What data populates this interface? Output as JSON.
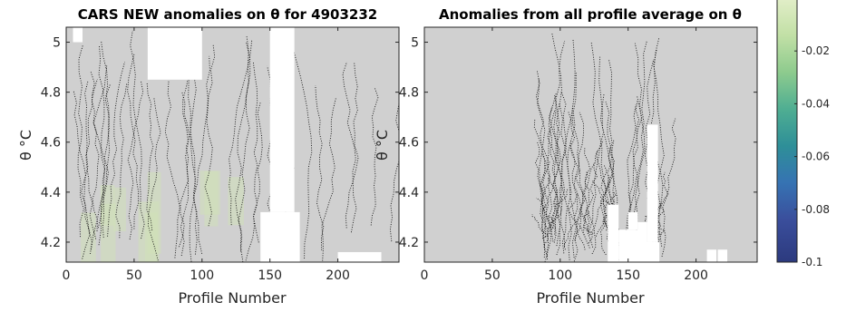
{
  "chart_data": [
    {
      "type": "heatmap",
      "title": "CARS NEW anomalies on θ for 4903232",
      "xlabel": "Profile Number",
      "ylabel": "θ °C",
      "xlim": [
        0,
        245
      ],
      "ylim": [
        4.12,
        5.06
      ],
      "x_ticks": [
        "0",
        "50",
        "100",
        "150",
        "200"
      ],
      "y_ticks": [
        "4.2",
        "4.4",
        "4.6",
        "4.8",
        "5"
      ],
      "grid": false,
      "fill_color": "#d0d0d0",
      "missing_data_gaps": [
        {
          "x": [
            143,
            172
          ],
          "y": [
            4.12,
            4.32
          ]
        },
        {
          "x": [
            150,
            168
          ],
          "y": [
            4.32,
            5.06
          ]
        },
        {
          "x": [
            5,
            12
          ],
          "y": [
            5.0,
            5.06
          ]
        },
        {
          "x": [
            60,
            100
          ],
          "y": [
            4.85,
            5.06
          ]
        },
        {
          "x": [
            200,
            232
          ],
          "y": [
            4.12,
            4.16
          ]
        }
      ]
    },
    {
      "type": "heatmap",
      "title": "Anomalies from all profile average on θ",
      "xlabel": "Profile Number",
      "ylabel": "θ °C",
      "xlim": [
        0,
        245
      ],
      "ylim": [
        4.12,
        5.06
      ],
      "x_ticks": [
        "0",
        "50",
        "100",
        "150",
        "200"
      ],
      "y_ticks": [
        "4.2",
        "4.4",
        "4.6",
        "4.8",
        "5"
      ],
      "grid": false,
      "fill_color": "#d0d0d0",
      "missing_data_gaps": [
        {
          "x": [
            135,
            143
          ],
          "y": [
            4.12,
            4.35
          ]
        },
        {
          "x": [
            143,
            160
          ],
          "y": [
            4.12,
            4.25
          ]
        },
        {
          "x": [
            150,
            157
          ],
          "y": [
            4.25,
            4.32
          ]
        },
        {
          "x": [
            157,
            164
          ],
          "y": [
            4.12,
            4.28
          ]
        },
        {
          "x": [
            163,
            173
          ],
          "y": [
            4.12,
            4.2
          ]
        },
        {
          "x": [
            164,
            172
          ],
          "y": [
            4.2,
            4.67
          ]
        },
        {
          "x": [
            208,
            215
          ],
          "y": [
            4.12,
            4.17
          ]
        },
        {
          "x": [
            216,
            223
          ],
          "y": [
            4.12,
            4.17
          ]
        }
      ]
    }
  ],
  "colorbar": {
    "ticks": [
      "-0.02",
      "-0.04",
      "-0.06",
      "-0.08",
      "-0.1"
    ],
    "range": [
      -0.1,
      0
    ],
    "colors_top_to_bottom": [
      "#e2eec8",
      "#c2e0a6",
      "#8ecb8e",
      "#4fae92",
      "#2e8f98",
      "#3673b3",
      "#3a4e9c",
      "#2c3a7e"
    ]
  }
}
